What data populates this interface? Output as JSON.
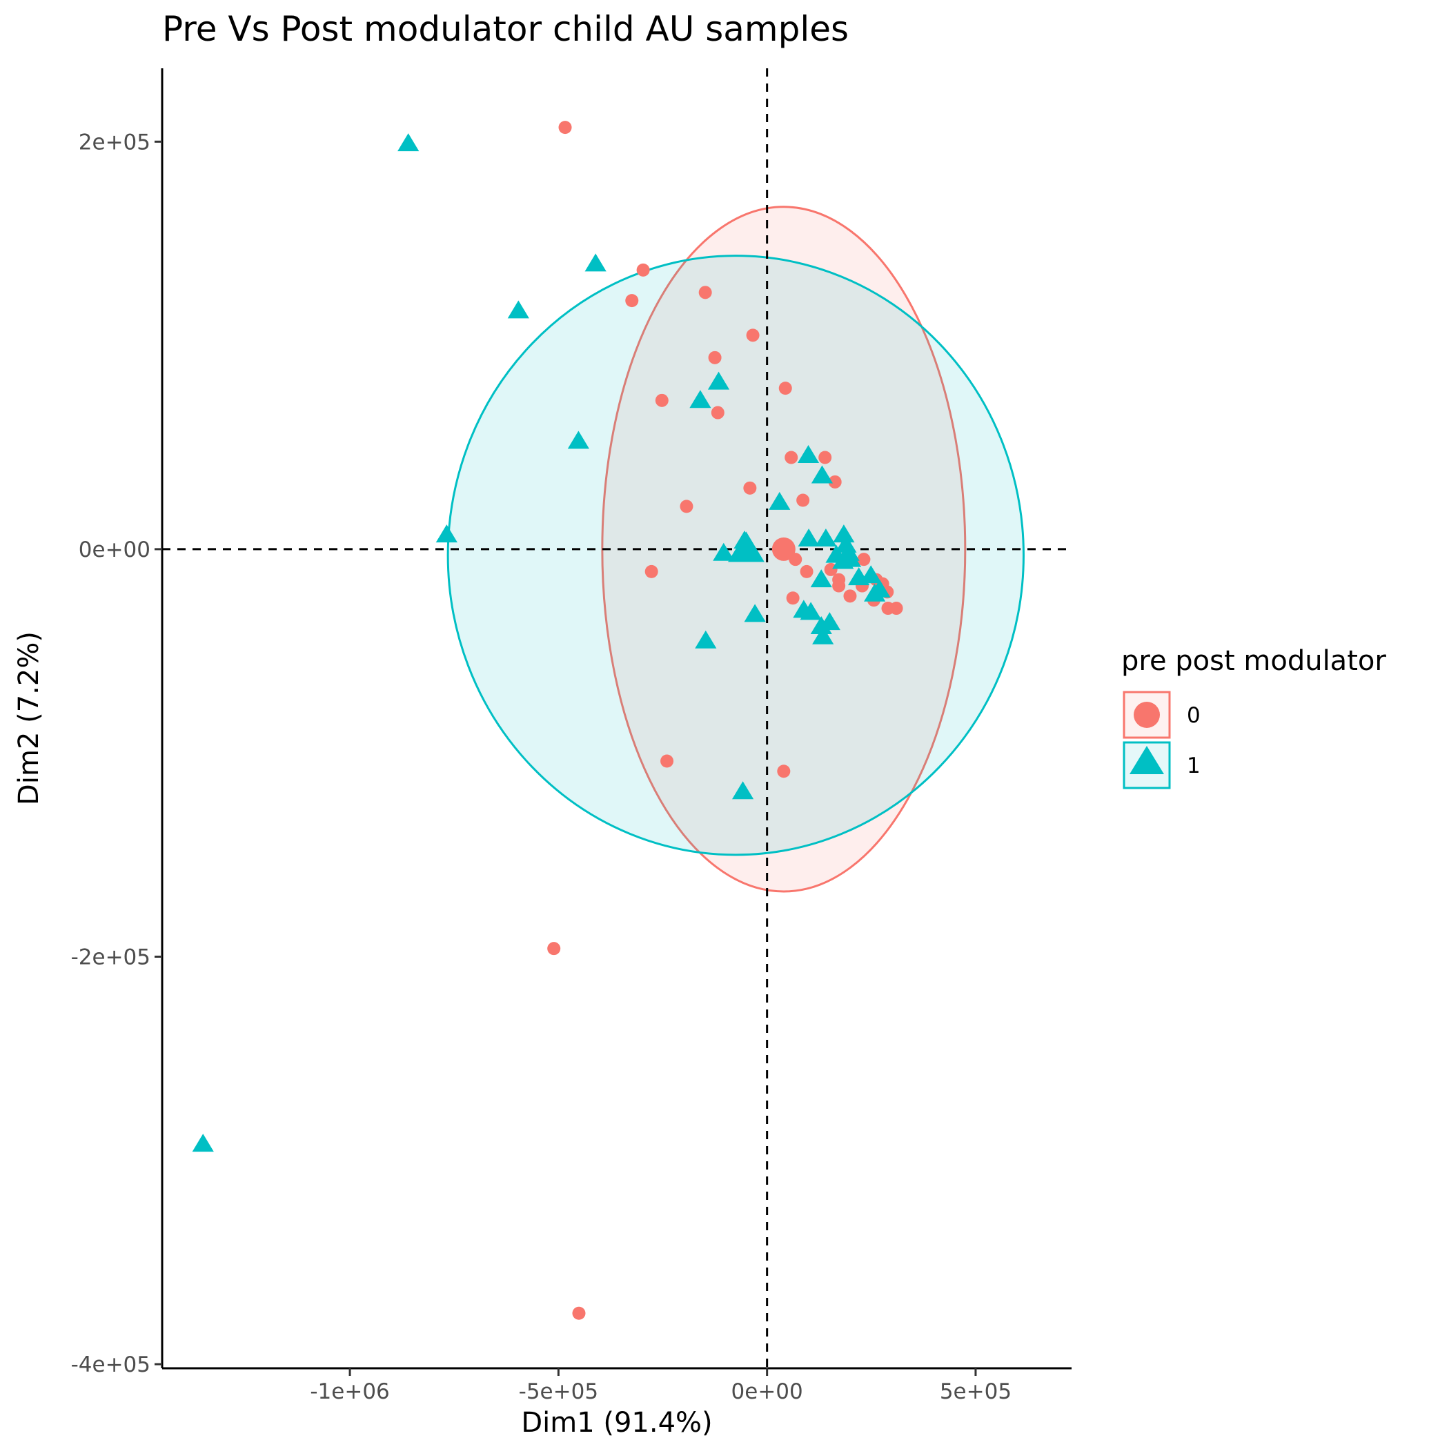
{
  "chart_data": {
    "type": "scatter",
    "title": "Pre Vs Post modulator child AU samples",
    "xlabel": "Dim1 (91.4%)",
    "ylabel": "Dim2 (7.2%)",
    "xlim": [
      -1450000,
      730000
    ],
    "ylim": [
      -402000,
      236000
    ],
    "x_ticks": [
      {
        "value": -1000000,
        "label": "-1e+06"
      },
      {
        "value": -500000,
        "label": "-5e+05"
      },
      {
        "value": 0,
        "label": "0e+00"
      },
      {
        "value": 500000,
        "label": "5e+05"
      }
    ],
    "y_ticks": [
      {
        "value": 200000,
        "label": "2e+05"
      },
      {
        "value": 0,
        "label": "0e+00"
      },
      {
        "value": -200000,
        "label": "-2e+05"
      },
      {
        "value": -400000,
        "label": "-4e+05"
      }
    ],
    "reference_lines": {
      "x": 0,
      "y": 0
    },
    "grid": false,
    "legend": {
      "title": "pre post modulator",
      "position": "right"
    },
    "series": [
      {
        "name": "0",
        "marker": "circle",
        "color": "#F8766D",
        "centroid": [
          40000,
          0
        ],
        "ellipse": {
          "center": [
            40000,
            0
          ],
          "rx": 435000,
          "ry": 168000
        },
        "points": [
          [
            -484000,
            207000
          ],
          [
            -297000,
            137000
          ],
          [
            -148000,
            126000
          ],
          [
            -324000,
            122000
          ],
          [
            -34000,
            105000
          ],
          [
            -125000,
            94000
          ],
          [
            44000,
            79000
          ],
          [
            -252000,
            73000
          ],
          [
            -118000,
            67000
          ],
          [
            58000,
            45000
          ],
          [
            139000,
            45000
          ],
          [
            163000,
            33000
          ],
          [
            -41000,
            30000
          ],
          [
            86000,
            24000
          ],
          [
            -193000,
            21000
          ],
          [
            68000,
            -5000
          ],
          [
            95000,
            -11000
          ],
          [
            -277000,
            -11000
          ],
          [
            153000,
            -10000
          ],
          [
            232000,
            -5000
          ],
          [
            172000,
            -15000
          ],
          [
            172000,
            -18000
          ],
          [
            228000,
            -18000
          ],
          [
            262000,
            -15000
          ],
          [
            277000,
            -17000
          ],
          [
            288000,
            -21000
          ],
          [
            62000,
            -24000
          ],
          [
            199000,
            -23000
          ],
          [
            256000,
            -25000
          ],
          [
            290000,
            -29000
          ],
          [
            310000,
            -29000
          ],
          [
            -240000,
            -104000
          ],
          [
            40000,
            -109000
          ],
          [
            -511000,
            -196000
          ],
          [
            -451000,
            -375000
          ]
        ]
      },
      {
        "name": "1",
        "marker": "triangle",
        "color": "#00BFC4",
        "centroid": [
          -50000,
          0
        ],
        "ellipse": {
          "center": [
            -75000,
            -3000
          ],
          "rx": 690000,
          "ry": 147000
        },
        "points": [
          [
            -860000,
            199000
          ],
          [
            -411000,
            140000
          ],
          [
            -596000,
            117000
          ],
          [
            -116000,
            82000
          ],
          [
            -160000,
            73000
          ],
          [
            -452000,
            53000
          ],
          [
            99000,
            46000
          ],
          [
            132000,
            36000
          ],
          [
            30000,
            23000
          ],
          [
            -768000,
            7000
          ],
          [
            -54000,
            4000
          ],
          [
            -60000,
            -1000
          ],
          [
            -104000,
            -2000
          ],
          [
            100000,
            5000
          ],
          [
            141000,
            5000
          ],
          [
            184000,
            7000
          ],
          [
            189000,
            2000
          ],
          [
            196000,
            -2000
          ],
          [
            166000,
            -3000
          ],
          [
            182000,
            -6000
          ],
          [
            200000,
            -5000
          ],
          [
            130000,
            -15000
          ],
          [
            220000,
            -14000
          ],
          [
            249000,
            -13000
          ],
          [
            258000,
            -22000
          ],
          [
            270000,
            -20000
          ],
          [
            -29000,
            -32000
          ],
          [
            88000,
            -30000
          ],
          [
            105000,
            -31000
          ],
          [
            130000,
            -38000
          ],
          [
            150000,
            -36000
          ],
          [
            -147000,
            -45000
          ],
          [
            134000,
            -43000
          ],
          [
            -58000,
            -119000
          ],
          [
            -1352000,
            -292000
          ]
        ]
      }
    ]
  }
}
